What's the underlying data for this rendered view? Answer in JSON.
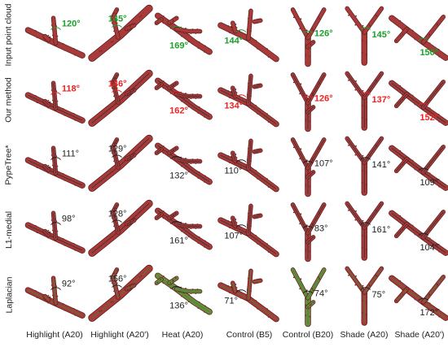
{
  "row_labels": [
    "Input point cloud",
    "Our method",
    "PypeTree*",
    "L1-medial",
    "Laplacian"
  ],
  "column_labels": [
    "Highlight (A20)",
    "Highlight (A20')",
    "Heat (A20)",
    "Control (B5)",
    "Control (B20)",
    "Shade (A20)",
    "Shade (A20')"
  ],
  "angles": [
    [
      "120°",
      "145°",
      "169°",
      "144°",
      "126°",
      "145°",
      "150°"
    ],
    [
      "118°",
      "146°",
      "162°",
      "134°",
      "126°",
      "137°",
      "152°"
    ],
    [
      "111°",
      "129°",
      "132°",
      "110°",
      "107°",
      "141°",
      "109°"
    ],
    [
      "98°",
      "128°",
      "161°",
      "107°",
      "83°",
      "161°",
      "104°"
    ],
    [
      "92°",
      "156°",
      "136°",
      "71°",
      "74°",
      "75°",
      "172°"
    ]
  ],
  "angle_colors": {
    "Input point cloud": "#1aa12a",
    "Our method": "#ee2222",
    "PypeTree*": "#222222",
    "L1-medial": "#222222",
    "Laplacian": "#222222"
  },
  "branch_color": "#a83a3a",
  "skeleton_color": "#6a8c3a"
}
